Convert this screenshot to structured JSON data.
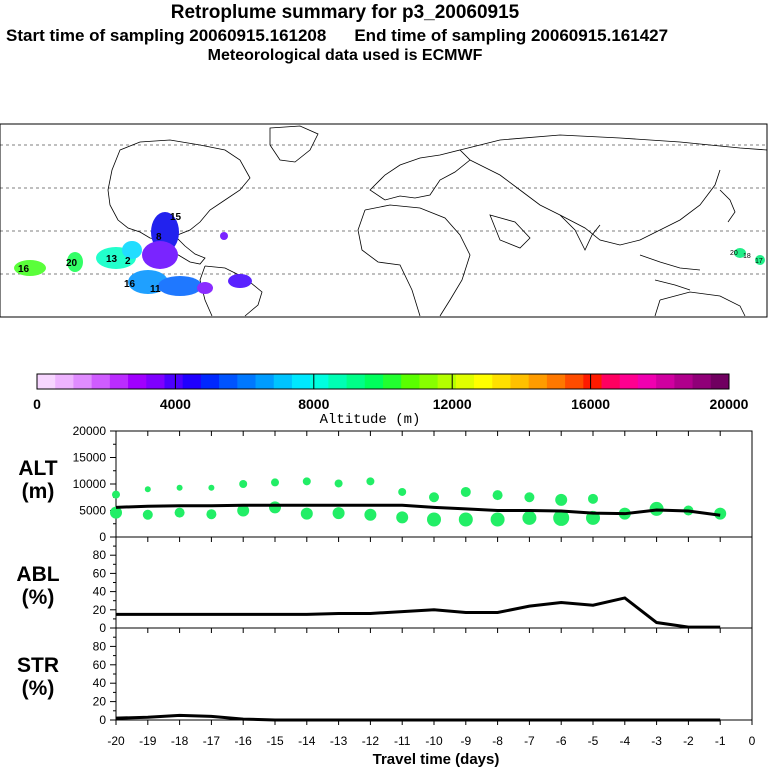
{
  "header": {
    "title": "Retroplume summary for p3_20060915",
    "start_label": "Start time of sampling 20060915.161208",
    "end_label": "End time of sampling 20060915.161427",
    "met_label": "Meteorological data used is ECMWF"
  },
  "map": {
    "plume_labels": [
      {
        "text": "16",
        "color": "#5aff3a"
      },
      {
        "text": "20",
        "color": "#33ff66"
      },
      {
        "text": "13",
        "color": "#22ffcc"
      },
      {
        "text": "2",
        "color": "#22ddff"
      },
      {
        "text": "16",
        "color": "#1fa0ff"
      },
      {
        "text": "11",
        "color": "#1f78ff"
      },
      {
        "text": "15",
        "color": "#7a24ff"
      },
      {
        "text": "8",
        "color": "#2222ee"
      }
    ],
    "far_east_labels": [
      "20",
      "18",
      "17"
    ],
    "colors": {
      "land_outline": "#000000",
      "grid": "#000000"
    }
  },
  "colorbar": {
    "tick_labels": [
      "0",
      "4000",
      "8000",
      "12000",
      "16000",
      "20000"
    ],
    "label": "Altitude (m)",
    "colors": [
      "#f7d6ff",
      "#eeb4ff",
      "#e08cff",
      "#cf5cff",
      "#bb2cff",
      "#a100ff",
      "#7f00ff",
      "#4c00ff",
      "#1f00ff",
      "#0028ff",
      "#0054ff",
      "#0078ff",
      "#009cff",
      "#00c4ff",
      "#00e8ff",
      "#00ffe0",
      "#00ffb4",
      "#00ff88",
      "#00ff5c",
      "#22ff30",
      "#5aff00",
      "#88ff00",
      "#b4ff00",
      "#e0ff00",
      "#ffff00",
      "#ffe000",
      "#ffc000",
      "#ff9c00",
      "#ff7800",
      "#ff4c00",
      "#ff1a00",
      "#ff0060",
      "#ff0090",
      "#f000b0",
      "#d000a0",
      "#b0008c",
      "#900078",
      "#700060"
    ]
  },
  "chart_data": [
    {
      "type": "scatter+line",
      "panel": "ALT",
      "ylabel": "ALT\n(m)",
      "ylabel_lines": [
        "ALT",
        "(m)"
      ],
      "ylim": [
        0,
        20000
      ],
      "yticks": [
        "20000",
        "15000",
        "10000",
        "5000",
        "0"
      ],
      "x": [
        -20,
        -19,
        -18,
        -17,
        -16,
        -15,
        -14,
        -13,
        -12,
        -11,
        -10,
        -9,
        -8,
        -7,
        -6,
        -5,
        -4,
        -3,
        -2,
        -1
      ],
      "series": [
        {
          "name": "mean altitude",
          "values": [
            5600,
            5800,
            5900,
            5900,
            6000,
            6000,
            6000,
            6000,
            6000,
            6000,
            5600,
            5300,
            5000,
            5000,
            4900,
            4500,
            4400,
            5100,
            4900,
            4100
          ]
        },
        {
          "name": "cluster upper",
          "values": [
            8000,
            9000,
            9300,
            9300,
            10000,
            10300,
            10500,
            10100,
            10500,
            8500,
            7500,
            8500,
            7900,
            7500,
            7000,
            7200,
            null,
            null,
            null,
            null
          ]
        },
        {
          "name": "cluster lower",
          "values": [
            4600,
            4200,
            4600,
            4300,
            5000,
            5600,
            4400,
            4500,
            4200,
            3700,
            3300,
            3300,
            3300,
            3600,
            3600,
            3600,
            4400,
            5300,
            5000,
            4400
          ]
        }
      ]
    },
    {
      "type": "line",
      "panel": "ABL",
      "ylabel_lines": [
        "ABL",
        "(%)"
      ],
      "ylim": [
        0,
        100
      ],
      "yticks": [
        "80",
        "60",
        "40",
        "20",
        "0"
      ],
      "x": [
        -20,
        -19,
        -18,
        -17,
        -16,
        -15,
        -14,
        -13,
        -12,
        -11,
        -10,
        -9,
        -8,
        -7,
        -6,
        -5,
        -4,
        -3,
        -2,
        -1
      ],
      "values": [
        15,
        15,
        15,
        15,
        15,
        15,
        15,
        16,
        16,
        18,
        20,
        17,
        17,
        24,
        28,
        25,
        33,
        6,
        1,
        1
      ]
    },
    {
      "type": "line",
      "panel": "STR",
      "ylabel_lines": [
        "STR",
        "(%)"
      ],
      "ylim": [
        0,
        100
      ],
      "yticks": [
        "80",
        "60",
        "40",
        "20",
        "0"
      ],
      "x": [
        -20,
        -19,
        -18,
        -17,
        -16,
        -15,
        -14,
        -13,
        -12,
        -11,
        -10,
        -9,
        -8,
        -7,
        -6,
        -5,
        -4,
        -3,
        -2,
        -1
      ],
      "values": [
        2,
        3,
        5,
        4,
        1,
        0,
        0,
        0,
        0,
        0,
        0,
        0,
        0,
        0,
        0,
        0,
        0,
        0,
        0,
        0
      ]
    }
  ],
  "xaxis": {
    "tick_labels": [
      "-20",
      "-19",
      "-18",
      "-17",
      "-16",
      "-15",
      "-14",
      "-13",
      "-12",
      "-11",
      "-10",
      "-9",
      "-8",
      "-7",
      "-6",
      "-5",
      "-4",
      "-3",
      "-2",
      "-1",
      "0"
    ],
    "label": "Travel time (days)",
    "scatter_color": "#22ee66"
  }
}
